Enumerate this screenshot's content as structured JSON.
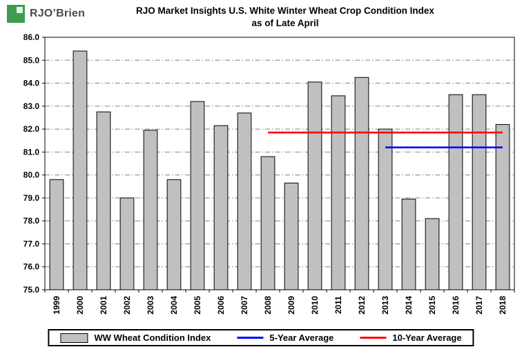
{
  "logo": {
    "text": "RJO’Brien"
  },
  "chart_data": {
    "type": "bar",
    "title": "RJO Market Insights U.S. White Winter Wheat Crop Condition Index",
    "subtitle": "as of Late April",
    "categories": [
      "1999",
      "2000",
      "2001",
      "2002",
      "2003",
      "2004",
      "2005",
      "2006",
      "2007",
      "2008",
      "2009",
      "2010",
      "2011",
      "2012",
      "2013",
      "2014",
      "2015",
      "2016",
      "2017",
      "2018"
    ],
    "values": [
      79.8,
      85.4,
      82.75,
      79.0,
      81.95,
      79.8,
      83.2,
      82.15,
      82.7,
      80.8,
      79.65,
      84.05,
      83.45,
      84.25,
      82.0,
      78.95,
      78.1,
      83.5,
      83.5,
      82.2
    ],
    "xlabel": "",
    "ylabel": "",
    "ylim": [
      75.0,
      86.0
    ],
    "ytick_step": 1.0,
    "ytick_labels": [
      "75.0",
      "76.0",
      "77.0",
      "78.0",
      "79.0",
      "80.0",
      "81.0",
      "82.0",
      "83.0",
      "84.0",
      "85.0",
      "86.0"
    ],
    "grid": "horizontal-dash-dot",
    "bar_color": "#C0C0C0",
    "bar_border_color": "#000000",
    "overlay_lines": [
      {
        "name": "5-Year Average",
        "value": 81.2,
        "from_category": "2013",
        "to_category": "2018",
        "color": "#0000FF"
      },
      {
        "name": "10-Year Average",
        "value": 81.85,
        "from_category": "2008",
        "to_category": "2018",
        "color": "#FF0000"
      }
    ],
    "legend": [
      {
        "label": "WW Wheat Condition Index",
        "swatch": "bar",
        "color": "#C0C0C0"
      },
      {
        "label": "5-Year Average",
        "swatch": "line",
        "color": "#0000FF"
      },
      {
        "label": "10-Year Average",
        "swatch": "line",
        "color": "#FF0000"
      }
    ],
    "legend_position": "bottom"
  }
}
